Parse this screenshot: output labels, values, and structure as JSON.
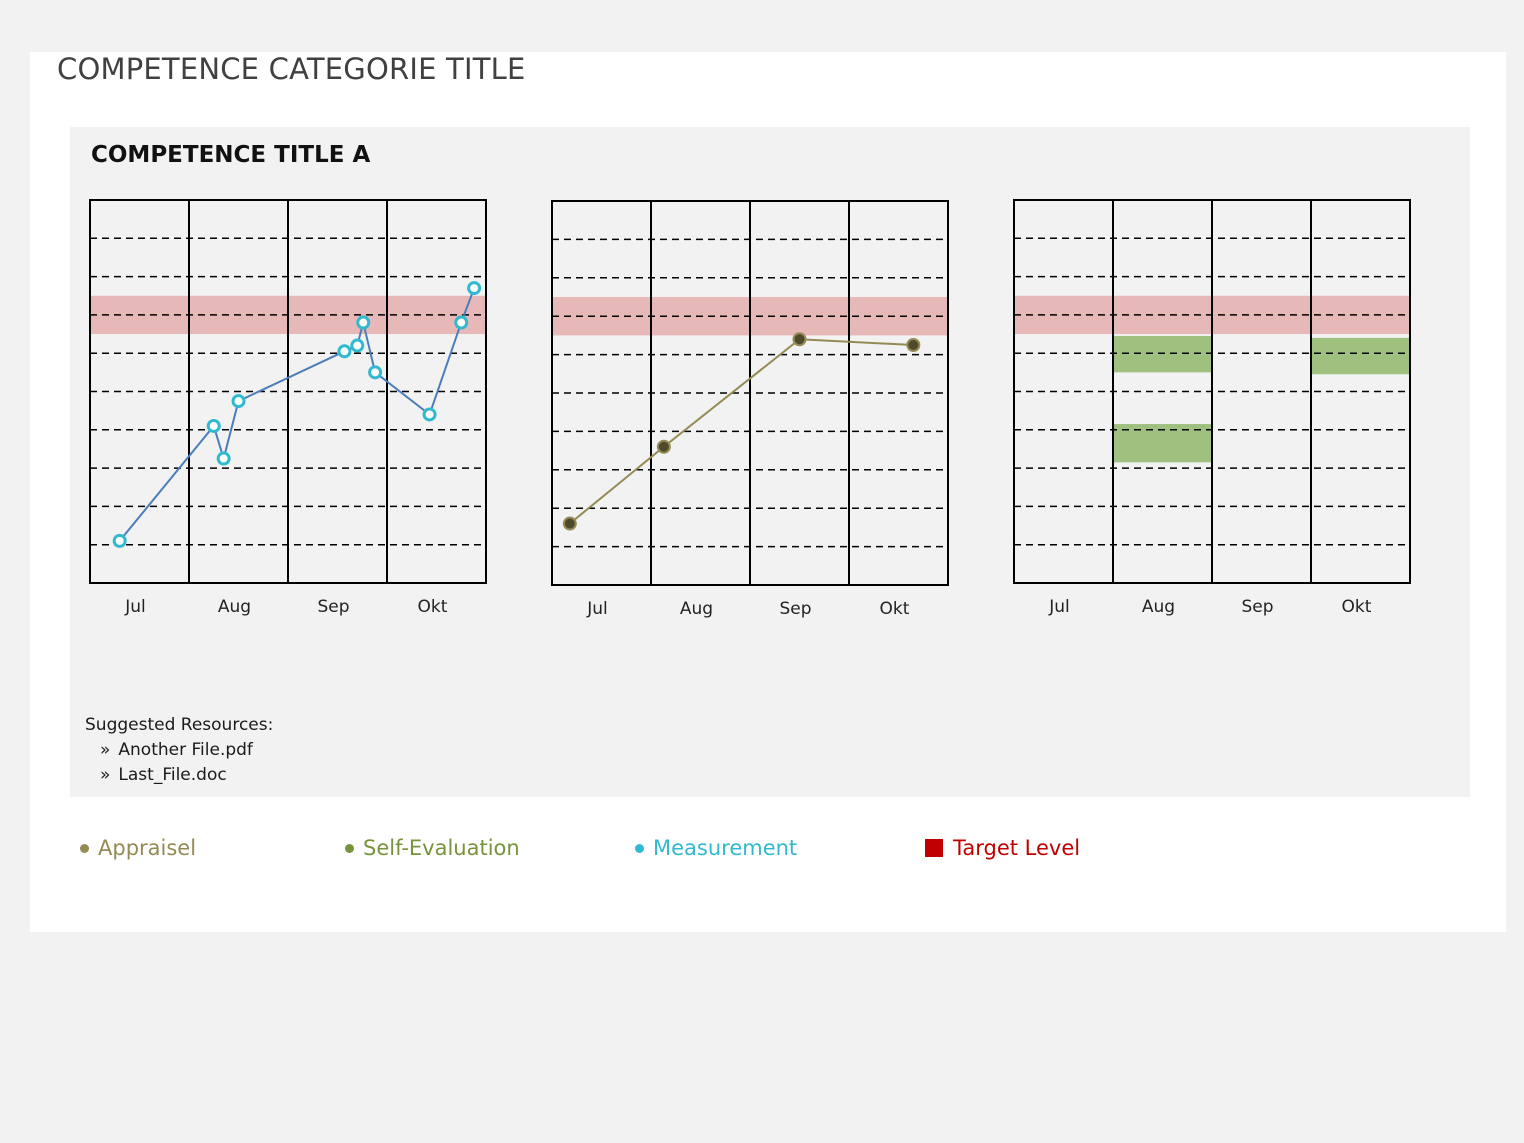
{
  "page": {
    "category_title": "COMPETENCE CATEGORIE TITLE",
    "competence_title": "COMPETENCE TITLE A"
  },
  "resources": {
    "heading": "Suggested Resources:",
    "bullet": "»",
    "files": [
      "Another File.pdf",
      "Last_File.doc"
    ]
  },
  "legend": [
    {
      "label": "Appraisel",
      "color": "#948a54",
      "marker": "dot"
    },
    {
      "label": "Self-Evaluation",
      "color": "#77933c",
      "marker": "dot"
    },
    {
      "label": "Measurement",
      "color": "#31b9d0",
      "marker": "dot"
    },
    {
      "label": "Target Level",
      "color": "#c00000",
      "marker": "square"
    }
  ],
  "colors": {
    "target_band": "#e6b9b8",
    "self_eval_block": "#a0c080",
    "measurement_line": "#4a7ebb",
    "measurement_marker": "#31b9d0",
    "appraisal_line": "#948a54",
    "appraisal_marker": "#4f4a2c"
  },
  "chart_data": [
    {
      "type": "line",
      "categories": [
        "Jul",
        "Aug",
        "Sep",
        "Okt"
      ],
      "xlim": [
        0,
        4
      ],
      "ylim": [
        0,
        10
      ],
      "grid": true,
      "target_band": [
        6.5,
        7.5
      ],
      "series": [
        {
          "marker": "measurement",
          "points": [
            {
              "x": 0.3,
              "y": 1.1
            },
            {
              "x": 1.25,
              "y": 4.1
            },
            {
              "x": 1.35,
              "y": 3.25
            },
            {
              "x": 1.5,
              "y": 4.75
            },
            {
              "x": 2.57,
              "y": 6.05
            },
            {
              "x": 2.7,
              "y": 6.2
            },
            {
              "x": 2.76,
              "y": 6.8
            },
            {
              "x": 2.88,
              "y": 5.5
            },
            {
              "x": 3.43,
              "y": 4.4
            },
            {
              "x": 3.75,
              "y": 6.8
            },
            {
              "x": 3.88,
              "y": 7.7
            }
          ]
        }
      ]
    },
    {
      "type": "line",
      "categories": [
        "Jul",
        "Aug",
        "Sep",
        "Okt"
      ],
      "xlim": [
        0,
        4
      ],
      "ylim": [
        0,
        10
      ],
      "grid": true,
      "target_band": [
        6.5,
        7.5
      ],
      "series": [
        {
          "marker": "appraisal",
          "points": [
            {
              "x": 0.18,
              "y": 1.6
            },
            {
              "x": 1.13,
              "y": 3.6
            },
            {
              "x": 2.5,
              "y": 6.4
            },
            {
              "x": 3.65,
              "y": 6.25
            }
          ]
        }
      ]
    },
    {
      "type": "bar",
      "categories": [
        "Jul",
        "Aug",
        "Sep",
        "Okt"
      ],
      "xlim": [
        0,
        4
      ],
      "ylim": [
        0,
        10
      ],
      "grid": true,
      "target_band": [
        6.5,
        7.5
      ],
      "series": [
        {
          "marker": "self_evaluation",
          "ranges": [
            {
              "category": "Aug",
              "from": 5.5,
              "to": 6.45
            },
            {
              "category": "Aug",
              "from": 3.15,
              "to": 4.15
            },
            {
              "category": "Okt",
              "from": 5.45,
              "to": 6.4
            }
          ]
        }
      ]
    }
  ]
}
